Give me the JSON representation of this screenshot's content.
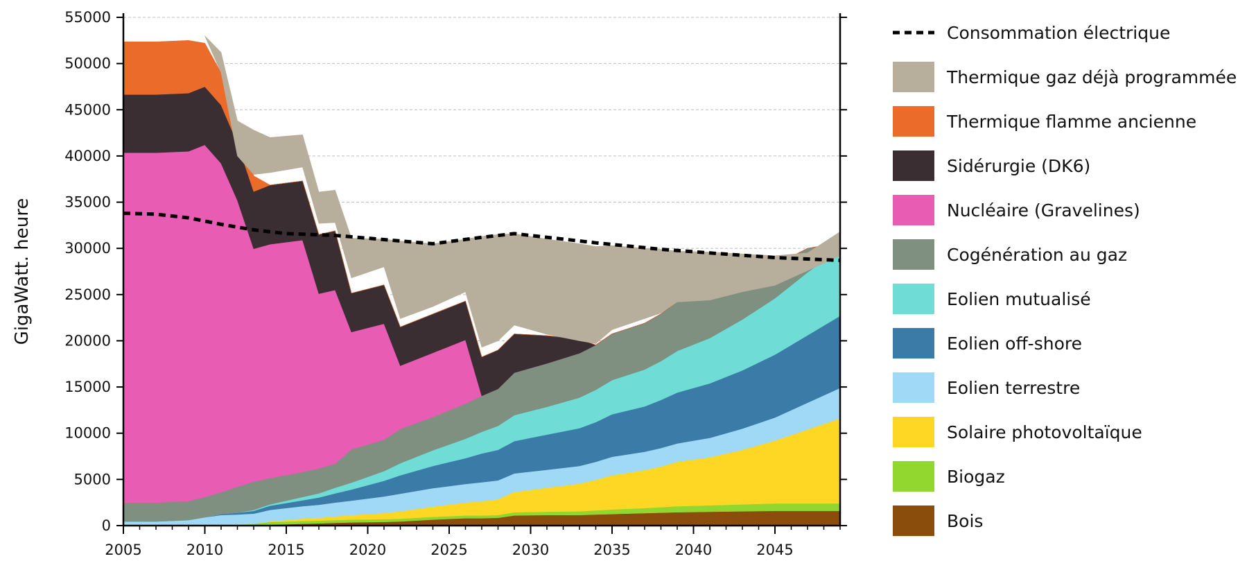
{
  "chart_data": {
    "type": "area",
    "stacked": true,
    "ylabel": "GigaWatt. heure",
    "xlabel": "",
    "title": "",
    "xlim": [
      2005,
      2049
    ],
    "ylim": [
      0,
      55000
    ],
    "xticks": [
      2005,
      2010,
      2015,
      2020,
      2025,
      2030,
      2035,
      2040,
      2045
    ],
    "yticks": [
      0,
      5000,
      10000,
      15000,
      20000,
      25000,
      30000,
      35000,
      40000,
      45000,
      50000,
      55000
    ],
    "grid": "horizontal-dashed",
    "legend_position": "right",
    "x": [
      2005,
      2007,
      2009,
      2010,
      2011,
      2012,
      2013,
      2014,
      2016,
      2017,
      2018,
      2019,
      2021,
      2022,
      2024,
      2026,
      2027,
      2028,
      2029,
      2031,
      2033,
      2034,
      2035,
      2037,
      2038,
      2039,
      2041,
      2043,
      2045,
      2047,
      2049
    ],
    "series": [
      {
        "name": "Bois",
        "color": "#8B4D0B",
        "values": [
          0,
          0,
          0,
          0,
          0,
          0,
          0,
          100,
          200,
          250,
          300,
          350,
          400,
          450,
          650,
          800,
          800,
          850,
          1100,
          1150,
          1150,
          1200,
          1250,
          1350,
          1400,
          1450,
          1500,
          1550,
          1600,
          1600,
          1600
        ]
      },
      {
        "name": "Biogaz",
        "color": "#92D72F",
        "values": [
          0,
          0,
          0,
          0,
          50,
          100,
          200,
          300,
          300,
          300,
          300,
          300,
          300,
          300,
          300,
          300,
          300,
          300,
          350,
          350,
          400,
          450,
          500,
          550,
          600,
          650,
          700,
          750,
          800,
          800,
          800
        ]
      },
      {
        "name": "Solaire photovoltaïque",
        "color": "#FDD724",
        "values": [
          0,
          0,
          0,
          0,
          0,
          0,
          0,
          50,
          250,
          300,
          400,
          500,
          650,
          800,
          1100,
          1400,
          1550,
          1700,
          2200,
          2600,
          3000,
          3300,
          3700,
          4100,
          4400,
          4800,
          5200,
          5900,
          6800,
          8000,
          9200
        ]
      },
      {
        "name": "Eolien terrestre",
        "color": "#9FD9F6",
        "values": [
          450,
          450,
          600,
          900,
          1100,
          1100,
          1100,
          1250,
          1350,
          1400,
          1500,
          1550,
          1800,
          1900,
          2000,
          2000,
          2050,
          2050,
          2000,
          1950,
          1900,
          1950,
          2000,
          2000,
          2000,
          2000,
          2100,
          2300,
          2500,
          2900,
          3300
        ]
      },
      {
        "name": "Eolien off-shore",
        "color": "#3A7BA8",
        "values": [
          0,
          0,
          0,
          0,
          100,
          200,
          300,
          450,
          650,
          800,
          1000,
          1200,
          1700,
          2000,
          2400,
          2800,
          3100,
          3300,
          3500,
          3800,
          4100,
          4300,
          4600,
          4900,
          5200,
          5500,
          5900,
          6300,
          6800,
          7300,
          7800
        ]
      },
      {
        "name": "Eolien mutualisé",
        "color": "#6FDCD6",
        "values": [
          0,
          0,
          0,
          0,
          0,
          0,
          100,
          150,
          350,
          450,
          600,
          750,
          1050,
          1300,
          1700,
          2100,
          2350,
          2600,
          2800,
          3000,
          3300,
          3500,
          3700,
          4000,
          4200,
          4500,
          4900,
          5500,
          6100,
          6800,
          7300
        ]
      },
      {
        "name": "Cogénération au gaz",
        "color": "#7F8F80",
        "values": [
          2050,
          2050,
          2050,
          2200,
          2350,
          2800,
          3050,
          2850,
          2700,
          2700,
          2600,
          3600,
          3400,
          3700,
          3600,
          3800,
          3900,
          4000,
          4600,
          4700,
          4800,
          4850,
          5000,
          5000,
          5100,
          5300,
          5000,
          4900,
          3600,
          2600,
          600
        ]
      },
      {
        "name": "Nucléaire (Gravelines)",
        "color": "#E85CB3",
        "values": [
          37850,
          37850,
          37850,
          38100,
          35600,
          31000,
          25200,
          25300,
          25100,
          18900,
          18800,
          12700,
          12550,
          6850,
          6950,
          6900,
          0,
          0,
          0,
          0,
          0,
          0,
          0,
          0,
          0,
          0,
          0,
          0,
          0,
          0,
          0
        ]
      },
      {
        "name": "Sidérurgie (DK6)",
        "color": "#3A2E33",
        "values": [
          6300,
          6300,
          6300,
          6300,
          6300,
          6200,
          6200,
          6400,
          6400,
          6400,
          6400,
          4200,
          4200,
          4200,
          4200,
          4200,
          4200,
          4200,
          4200,
          3000,
          1550,
          0,
          0,
          0,
          0,
          0,
          0,
          0,
          0,
          0,
          0
        ]
      },
      {
        "name": "Thermique flamme ancienne",
        "color": "#EA6B2A",
        "values": [
          5700,
          5700,
          5700,
          4700,
          3500,
          2200,
          1700,
          0,
          0,
          0,
          0,
          0,
          0,
          0,
          0,
          0,
          0,
          0,
          0,
          0,
          0,
          0,
          0,
          0,
          0,
          0,
          0,
          0,
          0,
          0,
          0
        ]
      },
      {
        "name": "Thermique gaz déjà programmée",
        "color": "#B8AE9C",
        "values": [
          0,
          0,
          0,
          0,
          0,
          0,
          0,
          0,
          0,
          0,
          0,
          0,
          0,
          0,
          0,
          0,
          0,
          0,
          0,
          0,
          0,
          0,
          0,
          0,
          0,
          0,
          0,
          0,
          0,
          0,
          0
        ],
        "segments": [
          {
            "x": [
              2010,
              2011,
              2012,
              2013,
              2014,
              2016,
              2017,
              2018,
              2019,
              2021,
              2022,
              2024,
              2026,
              2027,
              2028,
              2029,
              2031,
              2033,
              2034
            ],
            "bottom": [
              53000,
              49000,
              40000,
              38000,
              38200,
              38800,
              32700,
              32800,
              26800,
              28000,
              22400,
              23700,
              25300,
              19300,
              20000,
              21700,
              20700,
              20000,
              19700
            ],
            "top": [
              53000,
              51200,
              43800,
              42800,
              42000,
              42300,
              36100,
              36300,
              31100,
              31000,
              30800,
              30500,
              31000,
              31300,
              31500,
              31600,
              31000,
              30500,
              30200
            ]
          },
          {
            "x": [
              2034,
              2035,
              2037,
              2038,
              2039,
              2041,
              2043,
              2045,
              2047,
              2049
            ],
            "bottom": [
              19700,
              21200,
              22400,
              23000,
              24200,
              24400,
              25300,
              26000,
              27600,
              29200
            ],
            "top": [
              30200,
              30300,
              30000,
              29900,
              29700,
              29600,
              29400,
              29200,
              29500,
              31800
            ]
          }
        ]
      },
      {
        "name": "Consommation électrique",
        "type": "line",
        "dash": true,
        "color": "#000000",
        "x": [
          2005,
          2007,
          2009,
          2011,
          2013,
          2015,
          2018,
          2020,
          2024,
          2027,
          2029,
          2031,
          2034,
          2038,
          2041,
          2045,
          2049
        ],
        "values": [
          33800,
          33700,
          33300,
          32600,
          32000,
          31600,
          31400,
          31100,
          30500,
          31200,
          31600,
          31200,
          30600,
          29900,
          29500,
          29000,
          28700
        ]
      }
    ],
    "legend": [
      {
        "name": "Consommation électrique",
        "kind": "dash",
        "color": "#000000"
      },
      {
        "name": "Thermique gaz déjà programmée",
        "kind": "box",
        "color": "#B8AE9C"
      },
      {
        "name": "Thermique flamme ancienne",
        "kind": "box",
        "color": "#EA6B2A"
      },
      {
        "name": "Sidérurgie (DK6)",
        "kind": "box",
        "color": "#3A2E33"
      },
      {
        "name": "Nucléaire (Gravelines)",
        "kind": "box",
        "color": "#E85CB3"
      },
      {
        "name": "Cogénération au gaz",
        "kind": "box",
        "color": "#7F8F80"
      },
      {
        "name": "Eolien mutualisé",
        "kind": "box",
        "color": "#6FDCD6"
      },
      {
        "name": "Eolien off-shore",
        "kind": "box",
        "color": "#3A7BA8"
      },
      {
        "name": "Eolien terrestre",
        "kind": "box",
        "color": "#9FD9F6"
      },
      {
        "name": "Solaire photovoltaïque",
        "kind": "box",
        "color": "#FDD724"
      },
      {
        "name": "Biogaz",
        "kind": "box",
        "color": "#92D72F"
      },
      {
        "name": "Bois",
        "kind": "box",
        "color": "#8B4D0B"
      }
    ]
  }
}
